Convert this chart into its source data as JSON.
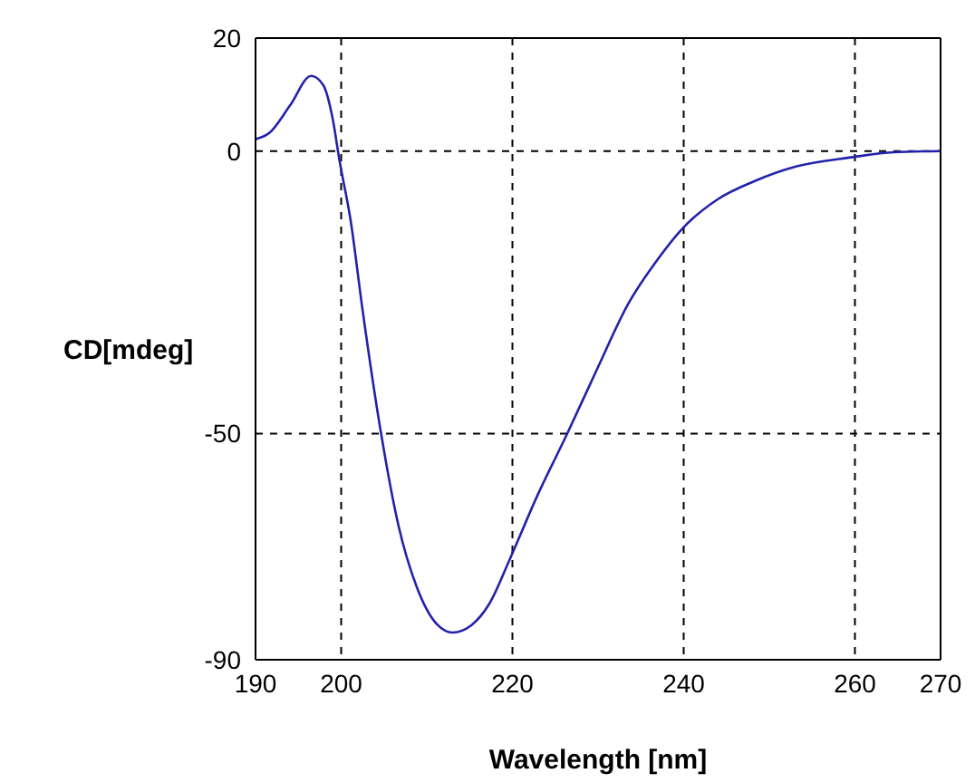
{
  "chart_data": {
    "type": "line",
    "xlabel": "Wavelength [nm]",
    "ylabel": "CD[mdeg]",
    "x": [
      190,
      191.6,
      194,
      196.5,
      197.9,
      199,
      199.8,
      201.1,
      202.5,
      204.6,
      206.7,
      208.8,
      211.3,
      213,
      215.2,
      217.3,
      219.7,
      222.9,
      226.4,
      230,
      233.5,
      237,
      239.8,
      244,
      248.3,
      253.2,
      259.6,
      264.5,
      270
    ],
    "series": [
      {
        "color": "#2222aa",
        "values": [
          2.1,
          3.2,
          8,
          13.3,
          11.7,
          5.8,
          -1.6,
          -12.2,
          -28.1,
          -49.4,
          -66.3,
          -77,
          -83.9,
          -85.2,
          -83.9,
          -80.1,
          -72.2,
          -61,
          -50,
          -38.2,
          -27.1,
          -19.1,
          -13.8,
          -8.5,
          -5.3,
          -2.7,
          -1.1,
          -0.2,
          0
        ]
      }
    ],
    "xlim": [
      190,
      270
    ],
    "xticks": [
      190,
      200,
      220,
      240,
      260,
      270
    ],
    "ylim": [
      -90,
      20
    ],
    "yticks": [
      -90,
      -50,
      0,
      20
    ],
    "grid": true,
    "line_style": "solid",
    "marker": "none",
    "legend": false
  }
}
